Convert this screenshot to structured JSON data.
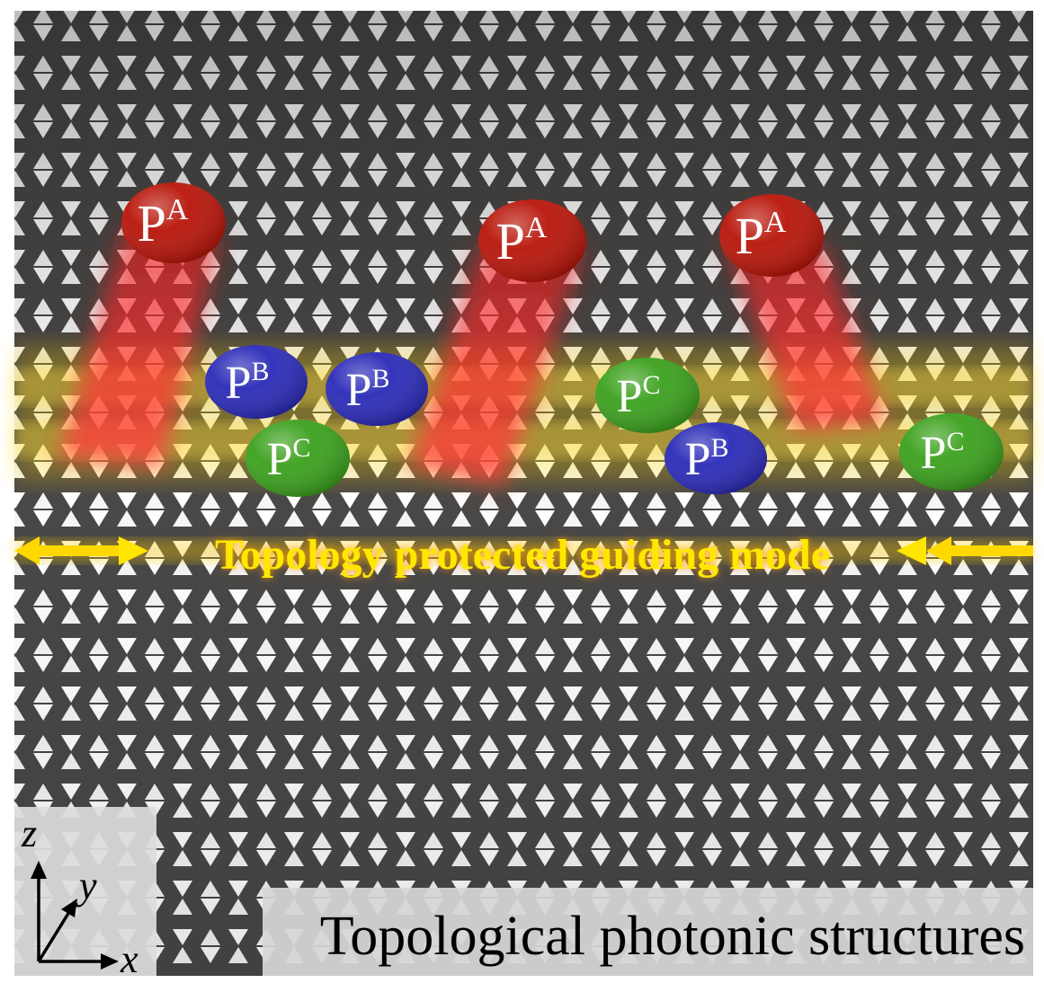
{
  "diagram": {
    "guiding_mode_label": "Topology protected guiding mode",
    "caption": "Topological photonic structures",
    "axes": {
      "z": "z",
      "y": "y",
      "x": "x"
    },
    "particles": [
      {
        "base": "P",
        "sup": "A",
        "color": "#b81408"
      },
      {
        "base": "P",
        "sup": "A",
        "color": "#b81408"
      },
      {
        "base": "P",
        "sup": "A",
        "color": "#b81408"
      },
      {
        "base": "P",
        "sup": "B",
        "color": "#2a2ab8"
      },
      {
        "base": "P",
        "sup": "B",
        "color": "#2a2ab8"
      },
      {
        "base": "P",
        "sup": "B",
        "color": "#2a2ab8"
      },
      {
        "base": "P",
        "sup": "C",
        "color": "#3aa01c"
      },
      {
        "base": "P",
        "sup": "C",
        "color": "#3aa01c"
      },
      {
        "base": "P",
        "sup": "C",
        "color": "#3aa01c"
      }
    ],
    "colors": {
      "lattice": "#4a4846",
      "holes": "#ffffff",
      "glow": "#ffd400",
      "mode_text": "#ffe800",
      "caption_bg": "#d6d6d6"
    }
  }
}
